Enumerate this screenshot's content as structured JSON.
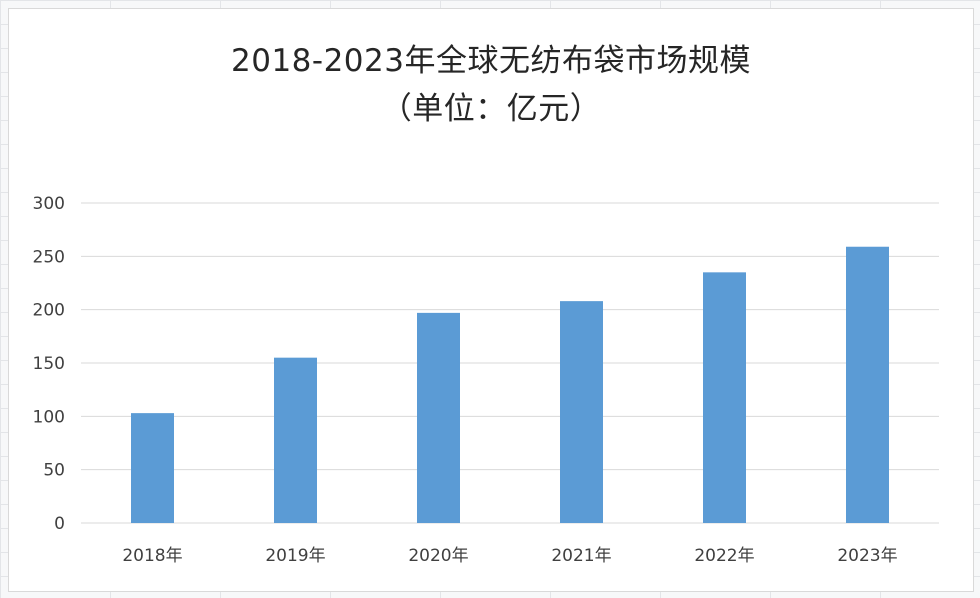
{
  "chart_data": {
    "type": "bar",
    "title": "2018-2023年全球无纺布袋市场规模",
    "subtitle": "（单位：亿元）",
    "categories": [
      "2018年",
      "2019年",
      "2020年",
      "2021年",
      "2022年",
      "2023年"
    ],
    "values": [
      103,
      155,
      197,
      208,
      235,
      259
    ],
    "yticks": [
      "0",
      "50",
      "100",
      "150",
      "200",
      "250",
      "300"
    ],
    "ylim": [
      0,
      300
    ],
    "grid": true,
    "legend": "none",
    "bar_color": "#5b9bd5",
    "gridline_color": "#d9d9d9"
  }
}
